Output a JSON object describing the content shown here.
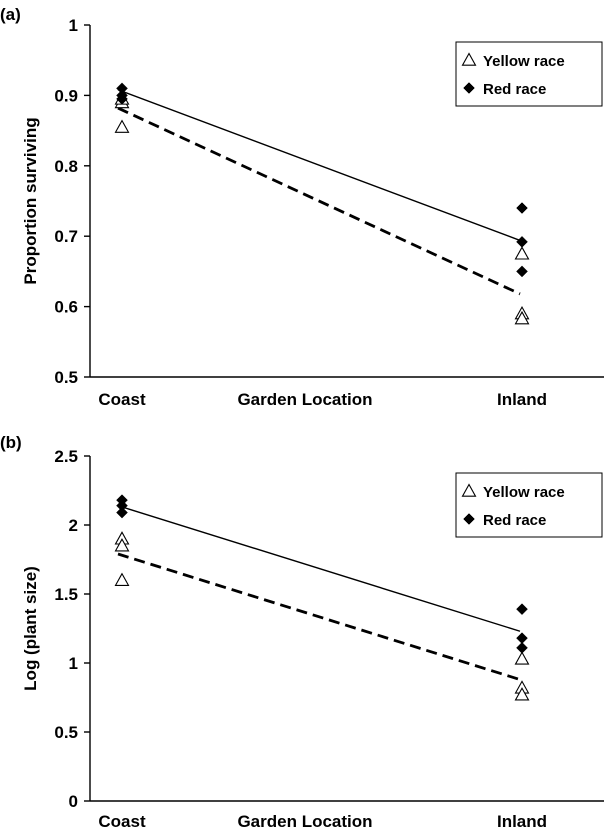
{
  "chart_data": [
    {
      "panel_label": "(a)",
      "type": "scatter",
      "xlabel": "Garden Location",
      "ylabel": "Proportion surviving",
      "categories": [
        "Coast",
        "Inland"
      ],
      "ylim": [
        0.5,
        1
      ],
      "yticks": [
        "0.5",
        "0.6",
        "0.7",
        "0.8",
        "0.9",
        "1"
      ],
      "legend_position": "top-right",
      "series": [
        {
          "name": "Yellow race",
          "marker": "open-triangle",
          "points": [
            {
              "x": "Coast",
              "y": 0.855
            },
            {
              "x": "Coast",
              "y": 0.89
            },
            {
              "x": "Coast",
              "y": 0.895
            },
            {
              "x": "Inland",
              "y": 0.675
            },
            {
              "x": "Inland",
              "y": 0.59
            },
            {
              "x": "Inland",
              "y": 0.583
            }
          ],
          "trend": {
            "style": "dashed",
            "values": [
              0.882,
              0.618
            ]
          }
        },
        {
          "name": "Red race",
          "marker": "filled-diamond",
          "points": [
            {
              "x": "Coast",
              "y": 0.91
            },
            {
              "x": "Coast",
              "y": 0.9
            },
            {
              "x": "Coast",
              "y": 0.895
            },
            {
              "x": "Inland",
              "y": 0.74
            },
            {
              "x": "Inland",
              "y": 0.692
            },
            {
              "x": "Inland",
              "y": 0.65
            }
          ],
          "trend": {
            "style": "solid",
            "values": [
              0.908,
              0.694
            ]
          }
        }
      ]
    },
    {
      "panel_label": "(b)",
      "type": "scatter",
      "xlabel": "Garden Location",
      "ylabel": "Log (plant size)",
      "categories": [
        "Coast",
        "Inland"
      ],
      "ylim": [
        0,
        2.5
      ],
      "yticks": [
        "0",
        "0.5",
        "1",
        "1.5",
        "2",
        "2.5"
      ],
      "legend_position": "top-right",
      "series": [
        {
          "name": "Yellow race",
          "marker": "open-triangle",
          "points": [
            {
              "x": "Coast",
              "y": 1.9
            },
            {
              "x": "Coast",
              "y": 1.85
            },
            {
              "x": "Coast",
              "y": 1.6
            },
            {
              "x": "Inland",
              "y": 1.03
            },
            {
              "x": "Inland",
              "y": 0.82
            },
            {
              "x": "Inland",
              "y": 0.77
            }
          ],
          "trend": {
            "style": "dashed",
            "values": [
              1.79,
              0.88
            ]
          }
        },
        {
          "name": "Red race",
          "marker": "filled-diamond",
          "points": [
            {
              "x": "Coast",
              "y": 2.18
            },
            {
              "x": "Coast",
              "y": 2.14
            },
            {
              "x": "Coast",
              "y": 2.09
            },
            {
              "x": "Inland",
              "y": 1.39
            },
            {
              "x": "Inland",
              "y": 1.18
            },
            {
              "x": "Inland",
              "y": 1.11
            }
          ],
          "trend": {
            "style": "solid",
            "values": [
              2.14,
              1.23
            ]
          }
        }
      ]
    }
  ]
}
